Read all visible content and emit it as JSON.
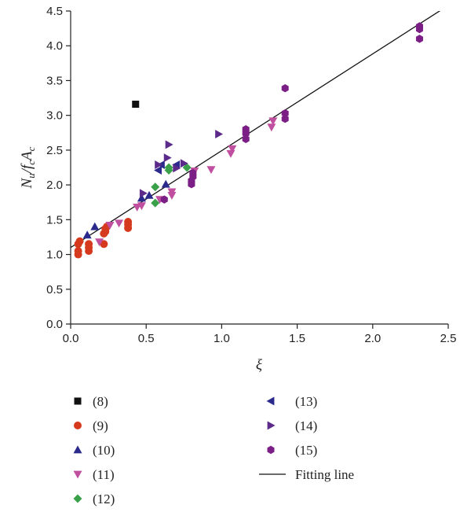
{
  "chart_data": {
    "type": "scatter",
    "title": "",
    "xlabel": "ξ",
    "ylabel": "N_u/f_cA_c",
    "xlim": [
      0,
      2.5
    ],
    "ylim": [
      0,
      4.5
    ],
    "x_ticks": [
      "0.0",
      "0.5",
      "1.0",
      "1.5",
      "2.0",
      "2.5"
    ],
    "y_ticks": [
      "0.0",
      "0.5",
      "1.0",
      "1.5",
      "2.0",
      "2.5",
      "3.0",
      "3.5",
      "4.0",
      "4.5"
    ],
    "grid": false,
    "legend_position": "bottom",
    "series": [
      {
        "name": "(8)",
        "marker": "square",
        "color": "#111111",
        "points": [
          [
            0.43,
            3.16
          ]
        ]
      },
      {
        "name": "(9)",
        "marker": "circle",
        "color": "#d63a1e",
        "points": [
          [
            0.05,
            1.0
          ],
          [
            0.05,
            1.05
          ],
          [
            0.05,
            1.15
          ],
          [
            0.06,
            1.19
          ],
          [
            0.12,
            1.05
          ],
          [
            0.12,
            1.1
          ],
          [
            0.12,
            1.15
          ],
          [
            0.22,
            1.15
          ],
          [
            0.22,
            1.3
          ],
          [
            0.23,
            1.33
          ],
          [
            0.23,
            1.37
          ],
          [
            0.24,
            1.4
          ],
          [
            0.38,
            1.38
          ],
          [
            0.38,
            1.43
          ],
          [
            0.38,
            1.47
          ]
        ]
      },
      {
        "name": "(10)",
        "marker": "triangle-up",
        "color": "#2b2a8c",
        "points": [
          [
            0.11,
            1.28
          ],
          [
            0.16,
            1.4
          ],
          [
            0.47,
            1.81
          ],
          [
            0.52,
            1.85
          ],
          [
            0.63,
            2.01
          ]
        ]
      },
      {
        "name": "(11)",
        "marker": "triangle-down",
        "color": "#c04fa0",
        "points": [
          [
            0.19,
            1.18
          ],
          [
            0.26,
            1.42
          ],
          [
            0.32,
            1.45
          ],
          [
            0.44,
            1.68
          ],
          [
            0.47,
            1.7
          ],
          [
            0.59,
            1.79
          ],
          [
            0.67,
            1.85
          ],
          [
            0.67,
            1.9
          ],
          [
            0.82,
            2.2
          ],
          [
            0.93,
            2.22
          ],
          [
            1.06,
            2.45
          ],
          [
            1.07,
            2.52
          ],
          [
            1.33,
            2.83
          ],
          [
            1.34,
            2.92
          ]
        ]
      },
      {
        "name": "(12)",
        "marker": "diamond",
        "color": "#3aa04a",
        "points": [
          [
            0.56,
            1.74
          ],
          [
            0.56,
            1.97
          ],
          [
            0.65,
            2.21
          ],
          [
            0.65,
            2.25
          ],
          [
            0.77,
            2.25
          ]
        ]
      },
      {
        "name": "(13)",
        "marker": "triangle-left",
        "color": "#2b2a8c",
        "points": [
          [
            0.58,
            2.21
          ],
          [
            0.6,
            2.29
          ],
          [
            0.7,
            2.29
          ]
        ]
      },
      {
        "name": "(14)",
        "marker": "triangle-right",
        "color": "#5b2a8a",
        "points": [
          [
            0.48,
            1.88
          ],
          [
            0.58,
            2.29
          ],
          [
            0.64,
            2.39
          ],
          [
            0.65,
            2.58
          ],
          [
            0.7,
            2.24
          ],
          [
            0.75,
            2.31
          ],
          [
            0.98,
            2.73
          ]
        ]
      },
      {
        "name": "(15)",
        "marker": "hexagon",
        "color": "#7b1e86",
        "points": [
          [
            0.62,
            1.79
          ],
          [
            0.8,
            2.01
          ],
          [
            0.8,
            2.06
          ],
          [
            0.81,
            2.12
          ],
          [
            0.81,
            2.17
          ],
          [
            1.16,
            2.66
          ],
          [
            1.16,
            2.74
          ],
          [
            1.16,
            2.8
          ],
          [
            1.42,
            2.95
          ],
          [
            1.42,
            3.03
          ],
          [
            1.42,
            3.39
          ],
          [
            2.31,
            4.1
          ],
          [
            2.31,
            4.24
          ],
          [
            2.31,
            4.28
          ]
        ]
      }
    ],
    "fit_line": {
      "name": "Fitting line",
      "color": "#111111",
      "points": [
        [
          0.0,
          1.1
        ],
        [
          2.5,
          4.58
        ]
      ]
    }
  }
}
